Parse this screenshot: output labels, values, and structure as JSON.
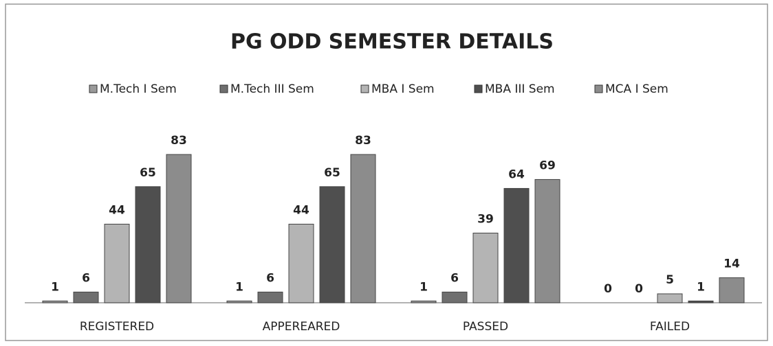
{
  "chart_data": {
    "type": "bar",
    "title": "PG ODD SEMESTER DETAILS",
    "categories": [
      "REGISTERED",
      "APPEREARED",
      "PASSED",
      "FAILED"
    ],
    "series": [
      {
        "name": "M.Tech I Sem",
        "color": "#9a9a9a",
        "values": [
          1,
          1,
          1,
          0
        ]
      },
      {
        "name": "M.Tech III Sem",
        "color": "#6f6f6f",
        "values": [
          6,
          6,
          6,
          0
        ]
      },
      {
        "name": "MBA I Sem",
        "color": "#b4b4b4",
        "values": [
          44,
          44,
          39,
          5
        ]
      },
      {
        "name": "MBA III Sem",
        "color": "#4f4f4f",
        "values": [
          65,
          65,
          64,
          1
        ]
      },
      {
        "name": "MCA I Sem",
        "color": "#8c8c8c",
        "values": [
          83,
          83,
          69,
          14
        ]
      }
    ]
  }
}
